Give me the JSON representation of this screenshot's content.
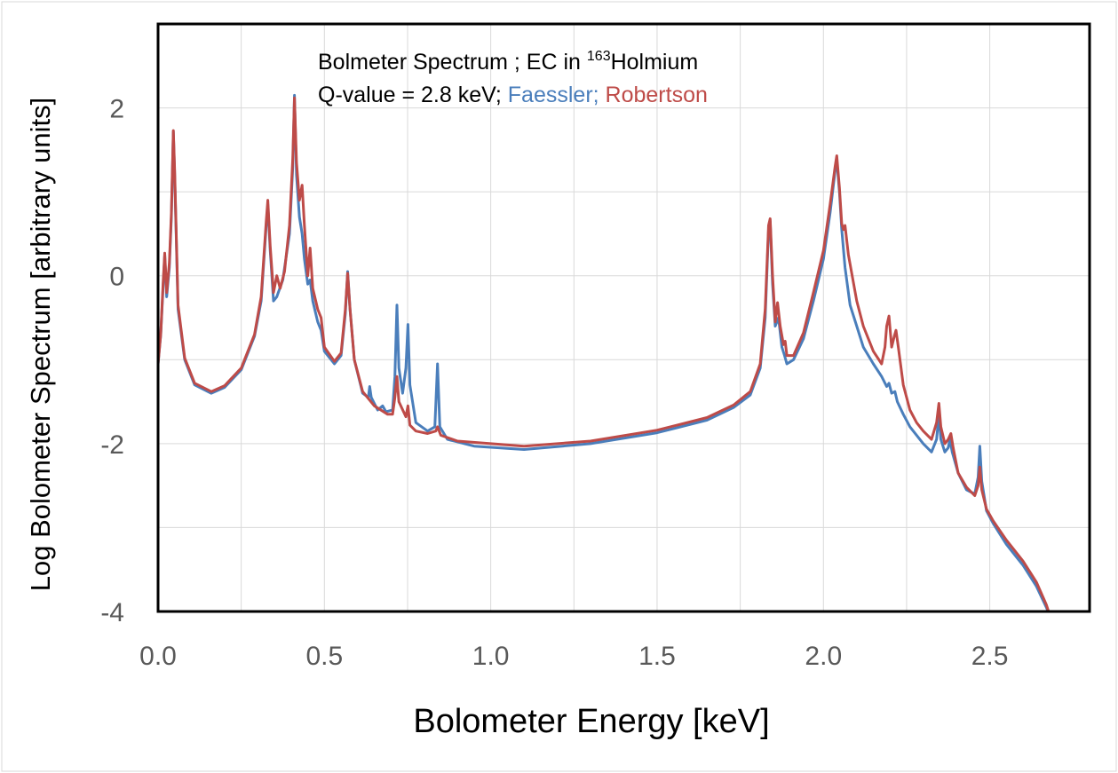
{
  "chart_data": {
    "type": "line",
    "title": "",
    "annotation": {
      "line1_prefix": "Bolmeter Spectrum ; EC  in ",
      "line1_superscript": "163",
      "line1_suffix": "Holmium",
      "line2_prefix": "Q-value = 2.8 keV;  ",
      "line2_series1": "Faessler;",
      "line2_series2": " Robertson"
    },
    "xlabel": "Bolometer Energy [keV]",
    "ylabel": "Log Bolometer Spectrum [arbitrary units]",
    "xlim": [
      0.0,
      2.8
    ],
    "ylim": [
      -4,
      3
    ],
    "xticks": [
      0.0,
      0.5,
      1.0,
      1.5,
      2.0,
      2.5
    ],
    "xtick_labels": [
      "0.0",
      "0.5",
      "1.0",
      "1.5",
      "2.0",
      "2.5"
    ],
    "yticks": [
      -4,
      -2,
      0,
      2
    ],
    "ytick_labels": [
      "-4",
      "-2",
      "0",
      "2"
    ],
    "grid": true,
    "legend": "inline-annotation",
    "colors": {
      "Faessler": "#4a7ebb",
      "Robertson": "#be4b48"
    },
    "series": [
      {
        "name": "Faessler",
        "points": [
          [
            0.0,
            -1.05
          ],
          [
            0.008,
            -0.7
          ],
          [
            0.015,
            -0.15
          ],
          [
            0.02,
            0.25
          ],
          [
            0.026,
            -0.25
          ],
          [
            0.034,
            0.1
          ],
          [
            0.04,
            0.7
          ],
          [
            0.046,
            1.72
          ],
          [
            0.05,
            1.2
          ],
          [
            0.06,
            -0.4
          ],
          [
            0.08,
            -1.0
          ],
          [
            0.11,
            -1.3
          ],
          [
            0.16,
            -1.4
          ],
          [
            0.2,
            -1.33
          ],
          [
            0.25,
            -1.12
          ],
          [
            0.29,
            -0.72
          ],
          [
            0.31,
            -0.3
          ],
          [
            0.325,
            0.6
          ],
          [
            0.33,
            0.85
          ],
          [
            0.337,
            0.3
          ],
          [
            0.347,
            -0.3
          ],
          [
            0.357,
            -0.25
          ],
          [
            0.375,
            -0.05
          ],
          [
            0.395,
            0.5
          ],
          [
            0.405,
            1.3
          ],
          [
            0.41,
            2.15
          ],
          [
            0.416,
            1.2
          ],
          [
            0.425,
            0.7
          ],
          [
            0.433,
            0.5
          ],
          [
            0.44,
            0.2
          ],
          [
            0.45,
            -0.1
          ],
          [
            0.457,
            -0.05
          ],
          [
            0.465,
            -0.3
          ],
          [
            0.48,
            -0.55
          ],
          [
            0.49,
            -0.65
          ],
          [
            0.5,
            -0.9
          ],
          [
            0.53,
            -1.05
          ],
          [
            0.55,
            -0.95
          ],
          [
            0.563,
            -0.45
          ],
          [
            0.57,
            0.05
          ],
          [
            0.577,
            -0.4
          ],
          [
            0.59,
            -1.0
          ],
          [
            0.615,
            -1.4
          ],
          [
            0.632,
            -1.45
          ],
          [
            0.636,
            -1.32
          ],
          [
            0.641,
            -1.45
          ],
          [
            0.66,
            -1.6
          ],
          [
            0.675,
            -1.55
          ],
          [
            0.685,
            -1.62
          ],
          [
            0.705,
            -1.6
          ],
          [
            0.712,
            -1.2
          ],
          [
            0.718,
            -0.35
          ],
          [
            0.724,
            -1.1
          ],
          [
            0.735,
            -1.4
          ],
          [
            0.745,
            -1.1
          ],
          [
            0.751,
            -0.58
          ],
          [
            0.757,
            -1.3
          ],
          [
            0.775,
            -1.75
          ],
          [
            0.81,
            -1.85
          ],
          [
            0.832,
            -1.8
          ],
          [
            0.84,
            -1.05
          ],
          [
            0.847,
            -1.8
          ],
          [
            0.87,
            -1.95
          ],
          [
            0.95,
            -2.03
          ],
          [
            1.1,
            -2.07
          ],
          [
            1.3,
            -2.0
          ],
          [
            1.5,
            -1.87
          ],
          [
            1.65,
            -1.72
          ],
          [
            1.73,
            -1.57
          ],
          [
            1.78,
            -1.42
          ],
          [
            1.81,
            -1.1
          ],
          [
            1.825,
            -0.5
          ],
          [
            1.835,
            0.55
          ],
          [
            1.84,
            0.65
          ],
          [
            1.847,
            -0.1
          ],
          [
            1.855,
            -0.6
          ],
          [
            1.865,
            -0.5
          ],
          [
            1.875,
            -0.85
          ],
          [
            1.883,
            -0.95
          ],
          [
            1.89,
            -1.05
          ],
          [
            1.91,
            -1.0
          ],
          [
            1.94,
            -0.75
          ],
          [
            1.97,
            -0.3
          ],
          [
            2.0,
            0.2
          ],
          [
            2.02,
            0.75
          ],
          [
            2.035,
            1.25
          ],
          [
            2.04,
            1.38
          ],
          [
            2.048,
            1.0
          ],
          [
            2.055,
            0.55
          ],
          [
            2.065,
            0.1
          ],
          [
            2.08,
            -0.35
          ],
          [
            2.1,
            -0.6
          ],
          [
            2.12,
            -0.85
          ],
          [
            2.15,
            -1.05
          ],
          [
            2.175,
            -1.2
          ],
          [
            2.19,
            -1.32
          ],
          [
            2.197,
            -1.28
          ],
          [
            2.205,
            -1.4
          ],
          [
            2.215,
            -1.38
          ],
          [
            2.222,
            -1.5
          ],
          [
            2.24,
            -1.65
          ],
          [
            2.26,
            -1.8
          ],
          [
            2.28,
            -1.9
          ],
          [
            2.3,
            -2.0
          ],
          [
            2.325,
            -2.1
          ],
          [
            2.34,
            -1.95
          ],
          [
            2.347,
            -1.65
          ],
          [
            2.353,
            -1.95
          ],
          [
            2.365,
            -2.1
          ],
          [
            2.375,
            -2.05
          ],
          [
            2.38,
            -1.95
          ],
          [
            2.387,
            -2.1
          ],
          [
            2.405,
            -2.35
          ],
          [
            2.43,
            -2.55
          ],
          [
            2.455,
            -2.6
          ],
          [
            2.465,
            -2.4
          ],
          [
            2.47,
            -2.03
          ],
          [
            2.476,
            -2.45
          ],
          [
            2.49,
            -2.8
          ],
          [
            2.51,
            -2.95
          ],
          [
            2.55,
            -3.2
          ],
          [
            2.6,
            -3.45
          ],
          [
            2.64,
            -3.7
          ],
          [
            2.67,
            -3.95
          ],
          [
            2.685,
            -4.1
          ]
        ]
      },
      {
        "name": "Robertson",
        "points": [
          [
            0.0,
            -1.05
          ],
          [
            0.008,
            -0.7
          ],
          [
            0.015,
            -0.1
          ],
          [
            0.02,
            0.27
          ],
          [
            0.026,
            -0.2
          ],
          [
            0.034,
            0.15
          ],
          [
            0.04,
            0.75
          ],
          [
            0.046,
            1.73
          ],
          [
            0.05,
            1.25
          ],
          [
            0.06,
            -0.35
          ],
          [
            0.08,
            -0.98
          ],
          [
            0.11,
            -1.28
          ],
          [
            0.16,
            -1.38
          ],
          [
            0.2,
            -1.31
          ],
          [
            0.25,
            -1.1
          ],
          [
            0.29,
            -0.7
          ],
          [
            0.31,
            -0.25
          ],
          [
            0.325,
            0.65
          ],
          [
            0.33,
            0.9
          ],
          [
            0.337,
            0.35
          ],
          [
            0.347,
            -0.2
          ],
          [
            0.357,
            0.0
          ],
          [
            0.367,
            -0.15
          ],
          [
            0.38,
            0.05
          ],
          [
            0.395,
            0.6
          ],
          [
            0.405,
            1.4
          ],
          [
            0.41,
            2.12
          ],
          [
            0.416,
            1.35
          ],
          [
            0.425,
            0.9
          ],
          [
            0.433,
            1.08
          ],
          [
            0.44,
            0.6
          ],
          [
            0.45,
            0.0
          ],
          [
            0.457,
            0.33
          ],
          [
            0.465,
            -0.15
          ],
          [
            0.48,
            -0.4
          ],
          [
            0.49,
            -0.5
          ],
          [
            0.5,
            -0.85
          ],
          [
            0.53,
            -1.02
          ],
          [
            0.55,
            -0.92
          ],
          [
            0.563,
            -0.4
          ],
          [
            0.57,
            0.03
          ],
          [
            0.577,
            -0.4
          ],
          [
            0.59,
            -1.0
          ],
          [
            0.615,
            -1.38
          ],
          [
            0.65,
            -1.55
          ],
          [
            0.69,
            -1.65
          ],
          [
            0.705,
            -1.65
          ],
          [
            0.712,
            -1.45
          ],
          [
            0.718,
            -1.2
          ],
          [
            0.724,
            -1.5
          ],
          [
            0.745,
            -1.68
          ],
          [
            0.751,
            -1.55
          ],
          [
            0.757,
            -1.78
          ],
          [
            0.775,
            -1.85
          ],
          [
            0.81,
            -1.88
          ],
          [
            0.835,
            -1.85
          ],
          [
            0.84,
            -1.8
          ],
          [
            0.85,
            -1.9
          ],
          [
            0.9,
            -1.97
          ],
          [
            1.1,
            -2.03
          ],
          [
            1.3,
            -1.97
          ],
          [
            1.5,
            -1.84
          ],
          [
            1.65,
            -1.69
          ],
          [
            1.73,
            -1.54
          ],
          [
            1.78,
            -1.38
          ],
          [
            1.81,
            -1.05
          ],
          [
            1.825,
            -0.4
          ],
          [
            1.835,
            0.6
          ],
          [
            1.84,
            0.68
          ],
          [
            1.847,
            0.0
          ],
          [
            1.855,
            -0.55
          ],
          [
            1.862,
            -0.32
          ],
          [
            1.87,
            -0.6
          ],
          [
            1.88,
            -0.82
          ],
          [
            1.885,
            -0.78
          ],
          [
            1.89,
            -0.95
          ],
          [
            1.91,
            -0.95
          ],
          [
            1.94,
            -0.68
          ],
          [
            1.97,
            -0.2
          ],
          [
            2.0,
            0.3
          ],
          [
            2.02,
            0.85
          ],
          [
            2.035,
            1.3
          ],
          [
            2.04,
            1.43
          ],
          [
            2.048,
            1.05
          ],
          [
            2.055,
            0.62
          ],
          [
            2.06,
            0.55
          ],
          [
            2.065,
            0.6
          ],
          [
            2.075,
            0.25
          ],
          [
            2.1,
            -0.3
          ],
          [
            2.12,
            -0.6
          ],
          [
            2.15,
            -0.9
          ],
          [
            2.175,
            -1.05
          ],
          [
            2.185,
            -0.85
          ],
          [
            2.19,
            -0.6
          ],
          [
            2.197,
            -0.48
          ],
          [
            2.205,
            -0.85
          ],
          [
            2.213,
            -0.72
          ],
          [
            2.218,
            -0.65
          ],
          [
            2.225,
            -0.85
          ],
          [
            2.24,
            -1.3
          ],
          [
            2.26,
            -1.6
          ],
          [
            2.28,
            -1.75
          ],
          [
            2.3,
            -1.85
          ],
          [
            2.325,
            -1.95
          ],
          [
            2.34,
            -1.75
          ],
          [
            2.347,
            -1.52
          ],
          [
            2.353,
            -1.8
          ],
          [
            2.365,
            -2.0
          ],
          [
            2.375,
            -1.95
          ],
          [
            2.383,
            -1.88
          ],
          [
            2.39,
            -2.05
          ],
          [
            2.405,
            -2.35
          ],
          [
            2.43,
            -2.52
          ],
          [
            2.455,
            -2.62
          ],
          [
            2.465,
            -2.5
          ],
          [
            2.47,
            -2.28
          ],
          [
            2.476,
            -2.55
          ],
          [
            2.49,
            -2.78
          ],
          [
            2.51,
            -2.92
          ],
          [
            2.55,
            -3.15
          ],
          [
            2.6,
            -3.4
          ],
          [
            2.64,
            -3.65
          ],
          [
            2.67,
            -3.92
          ],
          [
            2.685,
            -4.1
          ]
        ]
      }
    ]
  }
}
